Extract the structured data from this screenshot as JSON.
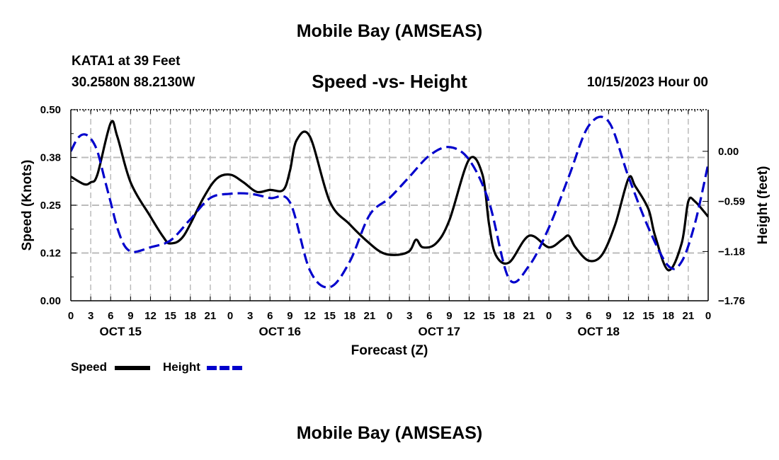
{
  "header": {
    "title": "Mobile Bay (AMSEAS)",
    "station": "KATA1 at 39 Feet",
    "coords": "30.2580N  88.2130W",
    "subtitle": "Speed -vs- Height",
    "datetime": "10/15/2023 Hour 00"
  },
  "footer": {
    "title": "Mobile Bay (AMSEAS)"
  },
  "legend": {
    "speed_label": "Speed",
    "height_label": "Height"
  },
  "colors": {
    "speed": "#000000",
    "height": "#0000cc",
    "grid": "#bbbbbb"
  },
  "chart_data": {
    "type": "line",
    "xlabel": "Forecast (Z)",
    "ylabel": "Speed (Knots)",
    "y2label": "Height (feet)",
    "x_range_hours": [
      0,
      96
    ],
    "x_tick_step_hours": 3,
    "x_tick_labels": [
      "0",
      "3",
      "6",
      "9",
      "12",
      "15",
      "18",
      "21",
      "0",
      "3",
      "6",
      "9",
      "12",
      "15",
      "18",
      "21",
      "0",
      "3",
      "6",
      "9",
      "12",
      "15",
      "18",
      "21",
      "0",
      "3",
      "6",
      "9",
      "12",
      "15",
      "18",
      "21",
      "0"
    ],
    "date_labels": [
      {
        "hour": 6,
        "label": "OCT 15"
      },
      {
        "hour": 30,
        "label": "OCT 16"
      },
      {
        "hour": 54,
        "label": "OCT 17"
      },
      {
        "hour": 78,
        "label": "OCT 18"
      }
    ],
    "ylim": [
      0,
      0.5
    ],
    "y_ticks": [
      0.0,
      0.125,
      0.25,
      0.375,
      0.5
    ],
    "y_tick_labels": [
      "0.00",
      "0.12",
      "0.25",
      "0.38",
      "0.50"
    ],
    "y2lim": [
      -1.76,
      0.49
    ],
    "y2_ticks": [
      -1.76,
      -1.18,
      -0.59,
      0.0
    ],
    "y2_tick_labels": [
      "−1.76",
      "−1.18",
      "−0.59",
      "0.00"
    ],
    "grid": true,
    "series": [
      {
        "name": "Speed",
        "axis": "left",
        "style": "solid",
        "x": [
          0,
          2,
          3,
          4,
          6,
          7,
          9,
          12,
          14,
          15,
          17,
          20,
          22,
          24,
          26,
          28,
          30,
          32,
          33,
          34,
          36,
          39,
          42,
          45,
          47,
          49,
          51,
          52,
          53,
          55,
          57,
          60,
          62,
          63,
          64,
          66,
          69,
          72,
          74,
          75,
          76,
          78,
          80,
          82,
          84,
          85,
          87,
          88,
          90,
          92,
          93,
          94,
          96
        ],
        "y": [
          0.325,
          0.305,
          0.31,
          0.33,
          0.465,
          0.43,
          0.31,
          0.22,
          0.165,
          0.15,
          0.17,
          0.27,
          0.32,
          0.33,
          0.31,
          0.285,
          0.29,
          0.29,
          0.34,
          0.42,
          0.43,
          0.26,
          0.2,
          0.15,
          0.125,
          0.12,
          0.13,
          0.16,
          0.14,
          0.15,
          0.21,
          0.37,
          0.33,
          0.2,
          0.12,
          0.1,
          0.17,
          0.14,
          0.16,
          0.17,
          0.14,
          0.105,
          0.12,
          0.2,
          0.32,
          0.3,
          0.24,
          0.17,
          0.08,
          0.15,
          0.26,
          0.26,
          0.22
        ]
      },
      {
        "name": "Height",
        "axis": "right",
        "style": "dashed",
        "x": [
          0,
          1,
          2,
          3,
          4,
          5,
          6,
          7,
          8,
          9,
          10,
          12,
          15,
          18,
          21,
          24,
          27,
          30,
          33,
          36,
          39,
          42,
          45,
          48,
          51,
          54,
          57,
          60,
          63,
          66,
          69,
          72,
          75,
          78,
          81,
          84,
          87,
          90,
          92,
          94,
          96
        ],
        "y": [
          0.0,
          0.15,
          0.2,
          0.15,
          0.0,
          -0.3,
          -0.6,
          -0.9,
          -1.1,
          -1.18,
          -1.18,
          -1.13,
          -1.05,
          -0.8,
          -0.55,
          -0.5,
          -0.5,
          -0.55,
          -0.6,
          -1.4,
          -1.6,
          -1.3,
          -0.75,
          -0.55,
          -0.3,
          -0.05,
          0.05,
          -0.1,
          -0.6,
          -1.5,
          -1.35,
          -0.9,
          -0.3,
          0.3,
          0.35,
          -0.3,
          -0.9,
          -1.35,
          -1.3,
          -0.85,
          -0.15
        ]
      }
    ]
  }
}
